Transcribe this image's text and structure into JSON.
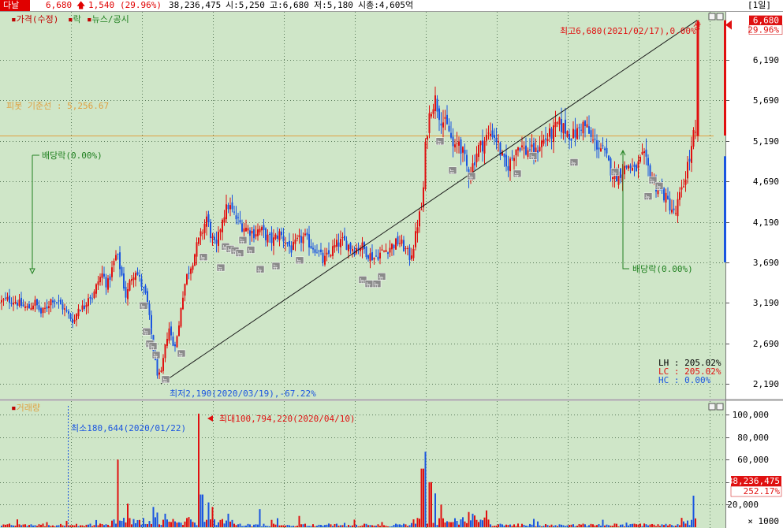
{
  "header": {
    "name": "다날",
    "price": "6,680",
    "change": "1,540",
    "change_pct": "(29.96%)",
    "volume": "38,236,475",
    "open": "시:5,250",
    "high": "고:6,680",
    "low": "저:5,180",
    "mcap": "시총:4,605억",
    "period": "[1일]"
  },
  "legend": {
    "price": "가격(수정)",
    "drop": "락",
    "news": "뉴스/공시"
  },
  "colors": {
    "bg": "#cfe6c8",
    "up": "#e01010",
    "down": "#1a55e0",
    "pivot": "#e0a040",
    "annot_green": "#208020",
    "axis_bg": "#ffffff",
    "grid": "#5a7a5a"
  },
  "pivot_label": "피봇 기준선 : 5,256.67",
  "annotations": {
    "high": "최고6,680(2021/02/17),0.00%",
    "low": "최저2,190(2020/03/19),-67.22%",
    "dividend": "배당락(0.00%)",
    "vol_max": "최대100,794,220(2020/04/10)",
    "vol_min": "최소180,644(2020/01/22)",
    "sang": "상",
    "news_tag": "뉴"
  },
  "stats": {
    "lh": "LH :  205.02%",
    "lc": "LC :  205.02%",
    "hc": "HC :    0.00%"
  },
  "volume_panel": {
    "title": "거래량",
    "last_value": "38,236,475",
    "last_pct": "252.17%",
    "unit": "× 1000"
  },
  "chart_data": [
    {
      "type": "candlestick",
      "title": "가격(수정)",
      "ylim": [
        1950,
        6900
      ],
      "yticks": [
        2190,
        2690,
        3190,
        3690,
        4190,
        4690,
        5190,
        5690,
        6190,
        6680
      ],
      "ytick_labels": [
        "2,190",
        "2,690",
        "3,190",
        "3,690",
        "4,190",
        "4,690",
        "5,190",
        "5,690",
        "6,190",
        "6,680"
      ],
      "pivot": 5256.67,
      "high": {
        "value": 6680,
        "date": "2021/02/17"
      },
      "low": {
        "value": 2190,
        "date": "2020/03/19"
      },
      "close_path": [
        [
          0,
          3200
        ],
        [
          10,
          3230
        ],
        [
          20,
          3210
        ],
        [
          28,
          3150
        ],
        [
          36,
          3120
        ],
        [
          44,
          3200
        ],
        [
          52,
          3060
        ],
        [
          58,
          3120
        ],
        [
          66,
          3250
        ],
        [
          72,
          3210
        ],
        [
          80,
          3130
        ],
        [
          88,
          3020
        ],
        [
          94,
          2960
        ],
        [
          100,
          3150
        ],
        [
          106,
          3120
        ],
        [
          112,
          3280
        ],
        [
          118,
          3260
        ],
        [
          124,
          3450
        ],
        [
          130,
          3550
        ],
        [
          136,
          3400
        ],
        [
          142,
          3600
        ],
        [
          148,
          3800
        ],
        [
          154,
          3550
        ],
        [
          160,
          3250
        ],
        [
          166,
          3500
        ],
        [
          172,
          3600
        ],
        [
          178,
          3450
        ],
        [
          184,
          3300
        ],
        [
          188,
          3100
        ],
        [
          192,
          2800
        ],
        [
          196,
          2500
        ],
        [
          200,
          2300
        ],
        [
          204,
          2280
        ],
        [
          208,
          2550
        ],
        [
          214,
          2900
        ],
        [
          220,
          2650
        ],
        [
          226,
          2800
        ],
        [
          230,
          3200
        ],
        [
          236,
          3500
        ],
        [
          244,
          3700
        ],
        [
          250,
          3900
        ],
        [
          256,
          4050
        ],
        [
          262,
          4250
        ],
        [
          268,
          4000
        ],
        [
          274,
          3850
        ],
        [
          282,
          4250
        ],
        [
          290,
          4400
        ],
        [
          298,
          4250
        ],
        [
          306,
          4150
        ],
        [
          314,
          4100
        ],
        [
          322,
          4050
        ],
        [
          330,
          4100
        ],
        [
          338,
          4000
        ],
        [
          346,
          3950
        ],
        [
          354,
          4050
        ],
        [
          362,
          3950
        ],
        [
          370,
          3850
        ],
        [
          378,
          3950
        ],
        [
          386,
          4000
        ],
        [
          394,
          3900
        ],
        [
          402,
          3850
        ],
        [
          410,
          3700
        ],
        [
          418,
          3800
        ],
        [
          426,
          3900
        ],
        [
          434,
          3950
        ],
        [
          442,
          3900
        ],
        [
          450,
          3850
        ],
        [
          458,
          3900
        ],
        [
          466,
          3800
        ],
        [
          474,
          3750
        ],
        [
          482,
          3800
        ],
        [
          490,
          3850
        ],
        [
          498,
          3900
        ],
        [
          506,
          3950
        ],
        [
          514,
          3850
        ],
        [
          520,
          3750
        ],
        [
          526,
          3950
        ],
        [
          530,
          4200
        ],
        [
          536,
          4400
        ],
        [
          540,
          5200
        ],
        [
          546,
          5600
        ],
        [
          552,
          5700
        ],
        [
          558,
          5500
        ],
        [
          564,
          5400
        ],
        [
          570,
          5300
        ],
        [
          576,
          5050
        ],
        [
          582,
          5200
        ],
        [
          588,
          5000
        ],
        [
          594,
          4800
        ],
        [
          600,
          4900
        ],
        [
          606,
          5100
        ],
        [
          612,
          5150
        ],
        [
          618,
          5250
        ],
        [
          624,
          5300
        ],
        [
          630,
          5200
        ],
        [
          636,
          5000
        ],
        [
          642,
          4850
        ],
        [
          648,
          4950
        ],
        [
          654,
          5100
        ],
        [
          660,
          5150
        ],
        [
          666,
          5050
        ],
        [
          672,
          5100
        ],
        [
          678,
          5000
        ],
        [
          684,
          5150
        ],
        [
          690,
          5200
        ],
        [
          696,
          5250
        ],
        [
          702,
          5300
        ],
        [
          708,
          5400
        ],
        [
          714,
          5350
        ],
        [
          720,
          5300
        ],
        [
          726,
          5250
        ],
        [
          732,
          5300
        ],
        [
          738,
          5400
        ],
        [
          744,
          5350
        ],
        [
          750,
          5200
        ],
        [
          756,
          5150
        ],
        [
          762,
          5100
        ],
        [
          768,
          5000
        ],
        [
          774,
          4850
        ],
        [
          780,
          4750
        ],
        [
          786,
          4800
        ],
        [
          792,
          4850
        ],
        [
          798,
          4900
        ],
        [
          804,
          4800
        ],
        [
          810,
          4900
        ],
        [
          816,
          5000
        ],
        [
          822,
          4850
        ],
        [
          828,
          4700
        ],
        [
          834,
          4600
        ],
        [
          840,
          4550
        ],
        [
          846,
          4450
        ],
        [
          852,
          4350
        ],
        [
          856,
          4250
        ],
        [
          860,
          4450
        ],
        [
          866,
          4600
        ],
        [
          872,
          4900
        ],
        [
          876,
          5000
        ],
        [
          880,
          5300
        ],
        [
          884,
          5150
        ]
      ],
      "last_candle": {
        "open": 5250,
        "high": 6680,
        "low": 5180,
        "close": 6680
      },
      "trendline": [
        [
          204,
          2190
        ],
        [
          884,
          6680
        ]
      ],
      "news_markers": [
        [
          182,
          3150
        ],
        [
          186,
          2830
        ],
        [
          190,
          2680
        ],
        [
          194,
          2650
        ],
        [
          198,
          2540
        ],
        [
          230,
          2560
        ],
        [
          210,
          2240
        ],
        [
          258,
          3750
        ],
        [
          280,
          3620
        ],
        [
          286,
          3880
        ],
        [
          292,
          3850
        ],
        [
          298,
          3830
        ],
        [
          304,
          3800
        ],
        [
          308,
          3960
        ],
        [
          318,
          3840
        ],
        [
          330,
          3600
        ],
        [
          350,
          3640
        ],
        [
          380,
          3710
        ],
        [
          460,
          3470
        ],
        [
          468,
          3420
        ],
        [
          478,
          3420
        ],
        [
          484,
          3510
        ],
        [
          558,
          5180
        ],
        [
          574,
          4820
        ],
        [
          598,
          4750
        ],
        [
          656,
          4780
        ],
        [
          676,
          5000
        ],
        [
          728,
          4920
        ],
        [
          780,
          4800
        ],
        [
          822,
          4500
        ],
        [
          828,
          4700
        ],
        [
          836,
          4630
        ]
      ]
    },
    {
      "type": "bar",
      "title": "거래량",
      "ylim": [
        0,
        110000
      ],
      "yticks": [
        20000,
        40000,
        60000,
        80000,
        100000
      ],
      "ytick_labels": [
        "20,000",
        "40,000",
        "60,000",
        "80,000",
        "100,000"
      ],
      "unit": "× 1000",
      "max": {
        "value": 100794220,
        "date": "2020/04/10"
      },
      "min": {
        "value": 180644,
        "date": "2020/01/22"
      },
      "spikes": [
        {
          "x": 150,
          "v": 60000,
          "up": true
        },
        {
          "x": 195,
          "v": 18000,
          "up": false
        },
        {
          "x": 200,
          "v": 13000,
          "up": false
        },
        {
          "x": 210,
          "v": 12000,
          "up": false
        },
        {
          "x": 252,
          "v": 100794,
          "up": true
        },
        {
          "x": 256,
          "v": 29000,
          "up": false
        },
        {
          "x": 264,
          "v": 22000,
          "up": false
        },
        {
          "x": 270,
          "v": 18000,
          "up": true
        },
        {
          "x": 290,
          "v": 12000,
          "up": false
        },
        {
          "x": 330,
          "v": 16000,
          "up": false
        },
        {
          "x": 380,
          "v": 10000,
          "up": true
        },
        {
          "x": 536,
          "v": 52000,
          "up": true
        },
        {
          "x": 540,
          "v": 67000,
          "up": false
        },
        {
          "x": 546,
          "v": 40000,
          "up": true
        },
        {
          "x": 552,
          "v": 30000,
          "up": false
        },
        {
          "x": 560,
          "v": 20000,
          "up": true
        },
        {
          "x": 600,
          "v": 12000,
          "up": false
        },
        {
          "x": 880,
          "v": 28000,
          "up": false
        },
        {
          "x": 884,
          "v": 38236,
          "up": true
        }
      ],
      "last_value": 38236475,
      "last_pct": "252.17%"
    }
  ]
}
